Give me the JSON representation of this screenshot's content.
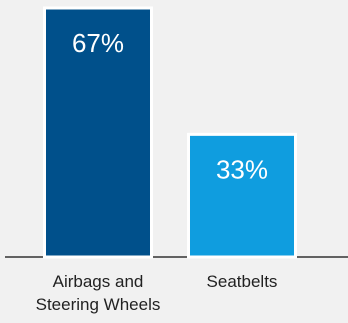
{
  "chart_data": {
    "type": "bar",
    "categories": [
      "Airbags and Steering Wheels",
      "Seatbelts"
    ],
    "category_label_lines": [
      [
        "Airbags and",
        "Steering Wheels"
      ],
      [
        "Seatbelts"
      ]
    ],
    "values": [
      67,
      33
    ],
    "data_labels": [
      "67%",
      "33%"
    ],
    "colors": [
      "#00508b",
      "#0f9ddf"
    ],
    "bar_border_color": "#ffffff",
    "axis_color": "#333333",
    "ylim": [
      0,
      67
    ],
    "title": "",
    "xlabel": "",
    "ylabel": "",
    "grid": false,
    "legend": "none"
  }
}
